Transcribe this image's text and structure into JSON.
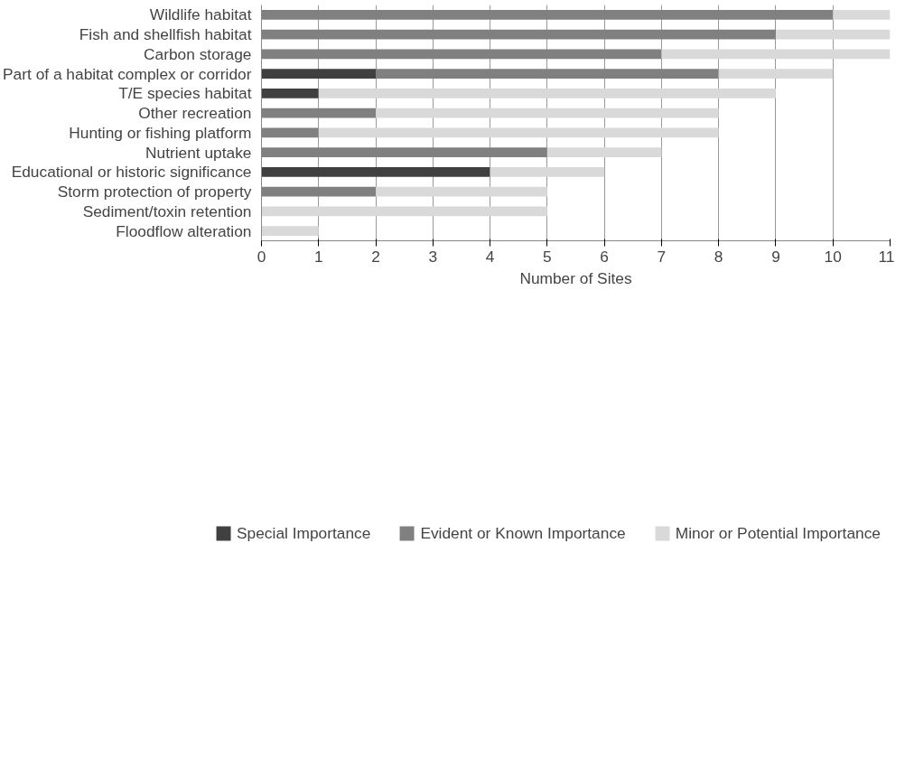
{
  "chart_data": {
    "type": "bar",
    "orientation": "horizontal",
    "stacked": true,
    "xlabel": "Number of Sites",
    "categories": [
      "Wildlife habitat",
      "Fish and shellfish habitat",
      "Carbon storage",
      "Part of a habitat complex or corridor",
      "T/E species habitat",
      "Other recreation",
      "Hunting or fishing platform",
      "Nutrient uptake",
      "Educational or historic significance",
      "Storm protection of property",
      "Sediment/toxin retention",
      "Floodflow alteration"
    ],
    "series": [
      {
        "name": "Special Importance",
        "color": "#404040",
        "values": [
          0,
          0,
          0,
          2,
          1,
          0,
          0,
          0,
          4,
          0,
          0,
          0
        ]
      },
      {
        "name": "Evident or Known Importance",
        "color": "#808080",
        "values": [
          10,
          9,
          7,
          6,
          0,
          2,
          1,
          5,
          0,
          2,
          0,
          0
        ]
      },
      {
        "name": "Minor or Potential Importance",
        "color": "#d9d9d9",
        "values": [
          1,
          2,
          4,
          2,
          8,
          6,
          7,
          2,
          2,
          3,
          5,
          1
        ]
      }
    ],
    "xlim": [
      0,
      11
    ],
    "xticks": [
      0,
      1,
      2,
      3,
      4,
      5,
      6,
      7,
      8,
      9,
      10,
      11
    ],
    "grid": "x",
    "legend": "bottom"
  }
}
